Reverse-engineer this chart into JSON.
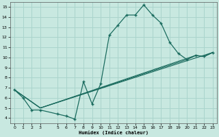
{
  "bg_color": "#c8e8e0",
  "grid_color": "#aad4cc",
  "line_color": "#1a6b5e",
  "xlabel": "Humidex (Indice chaleur)",
  "xlim": [
    -0.5,
    23.5
  ],
  "ylim": [
    3.5,
    15.5
  ],
  "xticks": [
    0,
    1,
    2,
    3,
    5,
    6,
    7,
    8,
    9,
    10,
    11,
    12,
    13,
    14,
    15,
    16,
    17,
    18,
    19,
    20,
    21,
    22,
    23
  ],
  "yticks": [
    4,
    5,
    6,
    7,
    8,
    9,
    10,
    11,
    12,
    13,
    14,
    15
  ],
  "main_x": [
    0,
    1,
    2,
    3,
    5,
    6,
    7,
    8,
    9,
    10,
    11,
    12,
    13,
    14,
    15,
    16,
    17,
    18,
    19,
    20,
    21,
    22,
    23
  ],
  "main_y": [
    6.8,
    6.0,
    4.8,
    4.8,
    4.4,
    4.2,
    3.9,
    7.6,
    5.4,
    7.4,
    12.2,
    13.2,
    14.2,
    14.2,
    15.2,
    14.2,
    13.4,
    11.5,
    10.4,
    9.8,
    10.2,
    10.1,
    10.5
  ],
  "trend1_x": [
    0,
    3,
    23
  ],
  "trend1_y": [
    6.8,
    5.0,
    10.5
  ],
  "trend2_x": [
    0,
    3,
    21,
    22,
    23
  ],
  "trend2_y": [
    6.8,
    5.0,
    10.2,
    10.1,
    10.5
  ],
  "trend3_x": [
    0,
    3,
    20,
    21,
    22,
    23
  ],
  "trend3_y": [
    6.8,
    5.0,
    9.8,
    10.2,
    10.1,
    10.5
  ]
}
